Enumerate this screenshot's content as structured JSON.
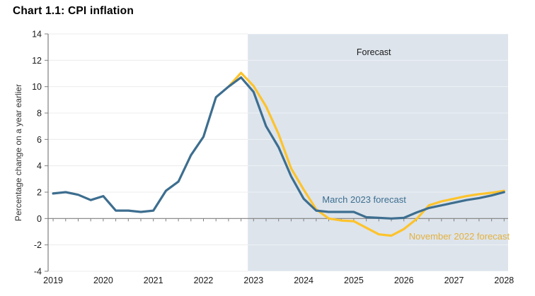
{
  "chart_data": {
    "type": "line",
    "title": "Chart 1.1: CPI inflation",
    "ylabel": "Percentage change on a year earlier",
    "ylim": [
      -4,
      14
    ],
    "ytick_step": 2,
    "xlim": [
      2018.9,
      2028.08
    ],
    "xticks": [
      2019,
      2020,
      2021,
      2022,
      2023,
      2024,
      2025,
      2026,
      2027,
      2028
    ],
    "quarter_tick_step": 0.25,
    "grid": true,
    "colors": {
      "axis": "#7f7f7f",
      "text": "#1a1a1a",
      "grid": "#ececec",
      "grid_on_forecast": "rgba(255,255,255,0.5)",
      "march_line": "#3d6e8f",
      "november_line": "#fdc32b",
      "forecast_fill": "#dde4ec"
    },
    "forecast_region": {
      "start": 2022.885,
      "label": "Forecast",
      "label_x": 2025.4,
      "label_value": 12.4
    },
    "series": [
      {
        "id": "november-2022-forecast-line",
        "name": "November 2022 forecast",
        "color": "#fdc32b",
        "x": [
          2022.5,
          2022.75,
          2023.0,
          2023.25,
          2023.5,
          2023.75,
          2024.0,
          2024.25,
          2024.5,
          2024.75,
          2025.0,
          2025.25,
          2025.5,
          2025.75,
          2026.0,
          2026.25,
          2026.5,
          2026.75,
          2027.0,
          2027.25,
          2027.5,
          2027.75,
          2028.0
        ],
        "values": [
          10.0,
          11.05,
          10.05,
          8.5,
          6.4,
          3.8,
          2.2,
          0.7,
          0.0,
          -0.15,
          -0.2,
          -0.7,
          -1.2,
          -1.3,
          -0.8,
          -0.05,
          1.0,
          1.3,
          1.5,
          1.7,
          1.85,
          1.95,
          2.1
        ]
      },
      {
        "id": "march-2023-forecast-line",
        "name": "March 2023 forecast",
        "color": "#3d6e8f",
        "x": [
          2019.0,
          2019.25,
          2019.5,
          2019.75,
          2020.0,
          2020.25,
          2020.5,
          2020.75,
          2021.0,
          2021.25,
          2021.5,
          2021.75,
          2022.0,
          2022.25,
          2022.5,
          2022.75,
          2023.0,
          2023.25,
          2023.5,
          2023.75,
          2024.0,
          2024.25,
          2024.5,
          2024.75,
          2025.0,
          2025.25,
          2025.5,
          2025.75,
          2026.0,
          2026.25,
          2026.5,
          2026.75,
          2027.0,
          2027.25,
          2027.5,
          2027.75,
          2028.0
        ],
        "values": [
          1.9,
          2.0,
          1.8,
          1.4,
          1.7,
          0.6,
          0.6,
          0.5,
          0.6,
          2.1,
          2.8,
          4.8,
          6.2,
          9.2,
          10.0,
          10.7,
          9.6,
          7.0,
          5.4,
          3.2,
          1.5,
          0.6,
          0.5,
          0.5,
          0.5,
          0.1,
          0.05,
          0.0,
          0.05,
          0.45,
          0.8,
          1.0,
          1.2,
          1.4,
          1.55,
          1.75,
          2.0
        ]
      }
    ],
    "annotations": [
      {
        "id": "march-2023-forecast-label",
        "text": "March 2023 forecast",
        "x": 2024.37,
        "value": 1.2,
        "color": "#3d6e8f",
        "anchor": "start"
      },
      {
        "id": "november-2022-forecast-label",
        "text": "November 2022 forecast",
        "x": 2026.1,
        "value": -1.6,
        "color": "#e4b13c",
        "anchor": "start"
      }
    ]
  }
}
